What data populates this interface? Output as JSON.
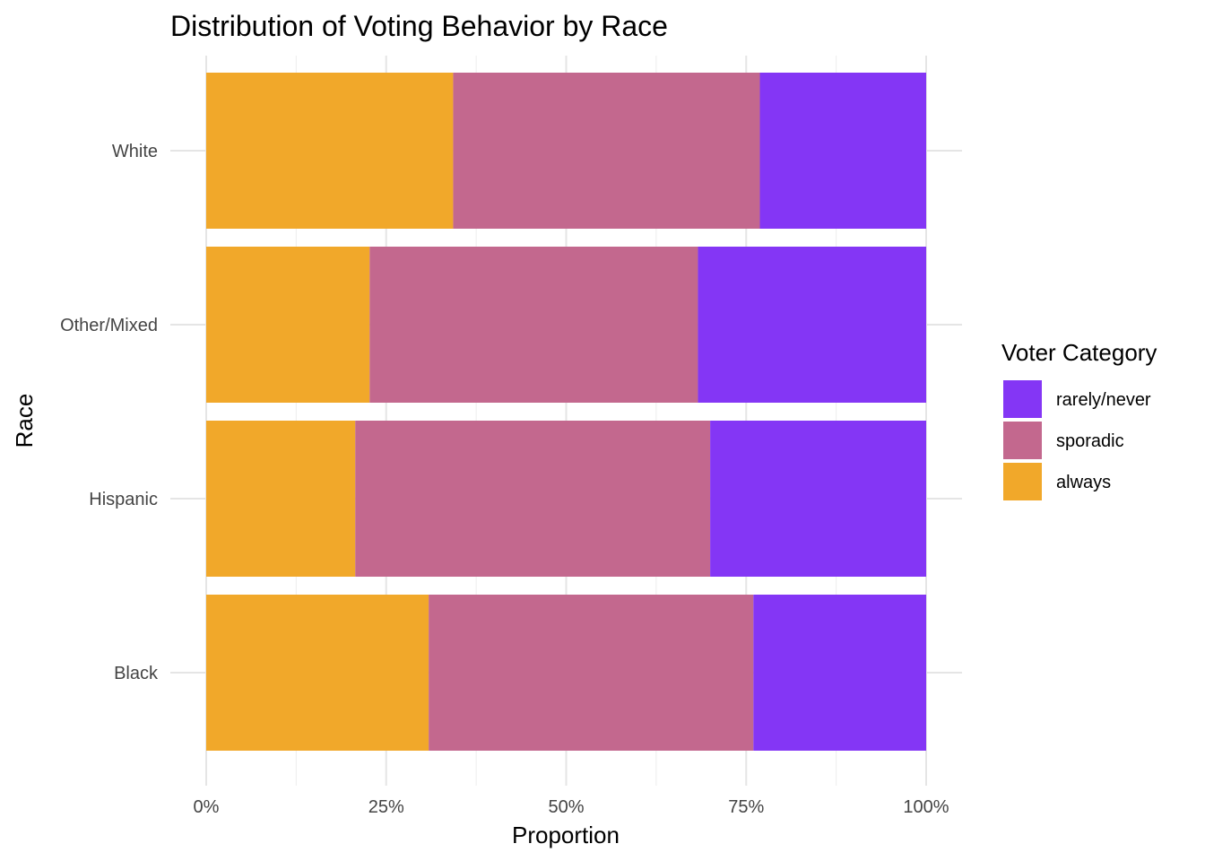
{
  "chart_data": {
    "type": "bar",
    "orientation": "horizontal",
    "stacked": true,
    "title": "Distribution of Voting Behavior by Race",
    "xlabel": "Proportion",
    "ylabel": "Race",
    "xlim": [
      0,
      1
    ],
    "x_ticks": [
      0,
      0.25,
      0.5,
      0.75,
      1
    ],
    "x_tick_labels": [
      "0%",
      "25%",
      "50%",
      "75%",
      "100%"
    ],
    "categories": [
      "White",
      "Other/Mixed",
      "Hispanic",
      "Black"
    ],
    "series": [
      {
        "name": "always",
        "color": "#F1A82A",
        "values": [
          0.343,
          0.227,
          0.207,
          0.309
        ]
      },
      {
        "name": "sporadic",
        "color": "#C3688E",
        "values": [
          0.426,
          0.456,
          0.493,
          0.451
        ]
      },
      {
        "name": "rarely/never",
        "color": "#8436F5",
        "values": [
          0.231,
          0.317,
          0.3,
          0.24
        ]
      }
    ],
    "legend": {
      "title": "Voter Category",
      "position": "right",
      "entries": [
        "rarely/never",
        "sporadic",
        "always"
      ]
    },
    "grid": true
  }
}
